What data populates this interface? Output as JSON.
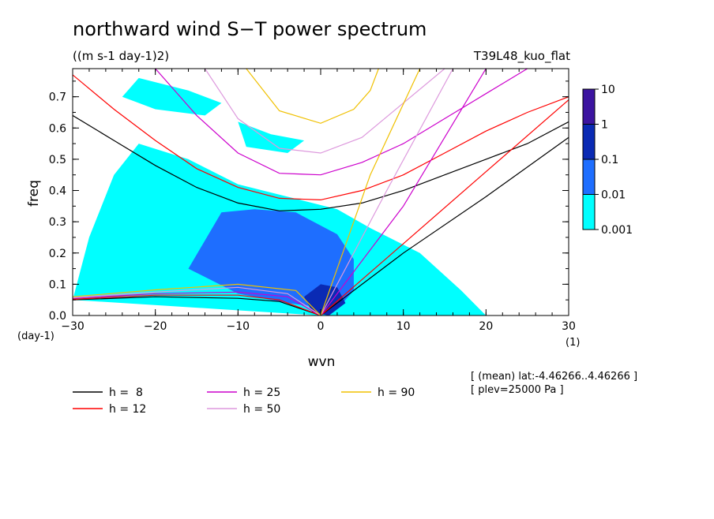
{
  "chart_data": {
    "type": "heatmap",
    "title": "northward wind S−T power spectrum",
    "subtitle": "((m s-1 day-1)2)",
    "run_label": "T39L48_kuo_flat",
    "xlabel": "wvn",
    "ylabel": "freq",
    "x_unit": "(1)",
    "y_unit": "(day-1)",
    "xlim": [
      -30,
      30
    ],
    "ylim": [
      0.0,
      0.79
    ],
    "x_ticks": [
      -30,
      -20,
      -10,
      0,
      10,
      20,
      30
    ],
    "x_tick_labels": [
      "−30",
      "−20",
      "−10",
      "0",
      "10",
      "20",
      "30"
    ],
    "y_ticks": [
      0.0,
      0.1,
      0.2,
      0.3,
      0.4,
      0.5,
      0.6,
      0.7
    ],
    "y_tick_labels": [
      "0.0",
      "0.1",
      "0.2",
      "0.3",
      "0.4",
      "0.5",
      "0.6",
      "0.7"
    ],
    "colorbar": {
      "levels": [
        0.001,
        0.01,
        0.1,
        1,
        10
      ],
      "labels": [
        "0.001",
        "0.01",
        "0.1",
        "1",
        "10"
      ],
      "colors": [
        "#00ffff",
        "#1e6eff",
        "#0a2ab4",
        "#3c14a0"
      ]
    },
    "contour_regions": [
      {
        "level": 0.001,
        "color": "#00ffff",
        "polygon": [
          [
            -30,
            0.05
          ],
          [
            -28,
            0.25
          ],
          [
            -25,
            0.45
          ],
          [
            -22,
            0.55
          ],
          [
            -16,
            0.5
          ],
          [
            -10,
            0.42
          ],
          [
            -4,
            0.38
          ],
          [
            2,
            0.34
          ],
          [
            6,
            0.28
          ],
          [
            12,
            0.2
          ],
          [
            17,
            0.08
          ],
          [
            20,
            0.0
          ],
          [
            0,
            0.0
          ],
          [
            -12,
            0.02
          ]
        ]
      },
      {
        "level": 0.001,
        "color": "#00ffff",
        "polygon": [
          [
            -22,
            0.76
          ],
          [
            -16,
            0.72
          ],
          [
            -12,
            0.68
          ],
          [
            -14,
            0.64
          ],
          [
            -20,
            0.66
          ],
          [
            -24,
            0.7
          ]
        ]
      },
      {
        "level": 0.001,
        "color": "#00ffff",
        "polygon": [
          [
            -10,
            0.62
          ],
          [
            -6,
            0.58
          ],
          [
            -2,
            0.56
          ],
          [
            -4,
            0.52
          ],
          [
            -9,
            0.54
          ]
        ]
      },
      {
        "level": 0.01,
        "color": "#1e6eff",
        "polygon": [
          [
            -16,
            0.15
          ],
          [
            -12,
            0.33
          ],
          [
            -8,
            0.34
          ],
          [
            -3,
            0.33
          ],
          [
            2,
            0.26
          ],
          [
            4,
            0.18
          ],
          [
            4,
            0.08
          ],
          [
            2,
            0.02
          ],
          [
            -4,
            0.04
          ],
          [
            -10,
            0.07
          ]
        ]
      },
      {
        "level": 0.1,
        "color": "#0a2ab4",
        "polygon": [
          [
            -2,
            0.06
          ],
          [
            0,
            0.1
          ],
          [
            2,
            0.09
          ],
          [
            3,
            0.04
          ],
          [
            1,
            0.0
          ],
          [
            -1,
            0.01
          ]
        ]
      }
    ],
    "dispersion_legend": [
      {
        "label": "h =  8",
        "color": "#000000"
      },
      {
        "label": "h = 12",
        "color": "#ff0000"
      },
      {
        "label": "h = 25",
        "color": "#cc00cc"
      },
      {
        "label": "h = 50",
        "color": "#dd99dd"
      },
      {
        "label": "h = 90",
        "color": "#f0c000"
      }
    ],
    "curves": [
      {
        "label": "h =  8",
        "color": "#000000",
        "points": [
          [
            -30,
            0.64
          ],
          [
            -25,
            0.56
          ],
          [
            -20,
            0.48
          ],
          [
            -15,
            0.41
          ],
          [
            -10,
            0.36
          ],
          [
            -5,
            0.335
          ],
          [
            0,
            0.34
          ],
          [
            5,
            0.36
          ],
          [
            10,
            0.4
          ],
          [
            15,
            0.45
          ],
          [
            20,
            0.5
          ],
          [
            25,
            0.55
          ],
          [
            30,
            0.62
          ]
        ]
      },
      {
        "label": "h = 12",
        "color": "#ff0000",
        "points": [
          [
            -30,
            0.77
          ],
          [
            -25,
            0.66
          ],
          [
            -20,
            0.56
          ],
          [
            -15,
            0.47
          ],
          [
            -10,
            0.41
          ],
          [
            -5,
            0.375
          ],
          [
            0,
            0.37
          ],
          [
            5,
            0.4
          ],
          [
            10,
            0.45
          ],
          [
            15,
            0.52
          ],
          [
            20,
            0.59
          ],
          [
            25,
            0.65
          ],
          [
            30,
            0.7
          ]
        ]
      },
      {
        "label": "h = 25",
        "color": "#cc00cc",
        "points": [
          [
            -20,
            0.79
          ],
          [
            -15,
            0.64
          ],
          [
            -10,
            0.52
          ],
          [
            -5,
            0.455
          ],
          [
            0,
            0.45
          ],
          [
            5,
            0.49
          ],
          [
            10,
            0.55
          ],
          [
            15,
            0.63
          ],
          [
            20,
            0.71
          ],
          [
            25,
            0.79
          ]
        ]
      },
      {
        "label": "h = 50",
        "color": "#dd99dd",
        "points": [
          [
            -14,
            0.79
          ],
          [
            -10,
            0.63
          ],
          [
            -5,
            0.535
          ],
          [
            0,
            0.52
          ],
          [
            5,
            0.57
          ],
          [
            10,
            0.68
          ],
          [
            15,
            0.79
          ]
        ]
      },
      {
        "label": "h = 90",
        "color": "#f0c000",
        "points": [
          [
            -9,
            0.79
          ],
          [
            -5,
            0.655
          ],
          [
            0,
            0.615
          ],
          [
            4,
            0.66
          ],
          [
            6,
            0.72
          ],
          [
            7,
            0.79
          ]
        ]
      },
      {
        "label": "h =  8",
        "color": "#000000",
        "points": [
          [
            0,
            0.0
          ],
          [
            10,
            0.2
          ],
          [
            20,
            0.38
          ],
          [
            30,
            0.57
          ]
        ]
      },
      {
        "label": "h = 12",
        "color": "#ff0000",
        "points": [
          [
            0,
            0.0
          ],
          [
            10,
            0.23
          ],
          [
            20,
            0.46
          ],
          [
            30,
            0.69
          ]
        ]
      },
      {
        "label": "h = 25",
        "color": "#cc00cc",
        "points": [
          [
            0,
            0.0
          ],
          [
            10,
            0.35
          ],
          [
            20,
            0.79
          ]
        ]
      },
      {
        "label": "h = 50",
        "color": "#dd99dd",
        "points": [
          [
            0,
            0.0
          ],
          [
            8,
            0.4
          ],
          [
            16,
            0.79
          ]
        ]
      },
      {
        "label": "h = 90",
        "color": "#f0c000",
        "points": [
          [
            0,
            0.0
          ],
          [
            6,
            0.45
          ],
          [
            12,
            0.79
          ]
        ]
      },
      {
        "label": "h =  8",
        "color": "#000000",
        "points": [
          [
            -30,
            0.05
          ],
          [
            -20,
            0.06
          ],
          [
            -10,
            0.055
          ],
          [
            -5,
            0.045
          ],
          [
            0,
            0.0
          ]
        ]
      },
      {
        "label": "h = 12",
        "color": "#ff0000",
        "points": [
          [
            -30,
            0.052
          ],
          [
            -20,
            0.065
          ],
          [
            -10,
            0.065
          ],
          [
            -5,
            0.05
          ],
          [
            0,
            0.0
          ]
        ]
      },
      {
        "label": "h = 25",
        "color": "#cc00cc",
        "points": [
          [
            -30,
            0.055
          ],
          [
            -20,
            0.07
          ],
          [
            -10,
            0.075
          ],
          [
            -4,
            0.06
          ],
          [
            0,
            0.0
          ]
        ]
      },
      {
        "label": "h = 50",
        "color": "#dd99dd",
        "points": [
          [
            -30,
            0.057
          ],
          [
            -20,
            0.075
          ],
          [
            -10,
            0.09
          ],
          [
            -4,
            0.07
          ],
          [
            0,
            0.0
          ]
        ]
      },
      {
        "label": "h = 90",
        "color": "#f0c000",
        "points": [
          [
            -30,
            0.06
          ],
          [
            -20,
            0.082
          ],
          [
            -10,
            0.1
          ],
          [
            -3,
            0.08
          ],
          [
            0,
            0.0
          ]
        ]
      }
    ]
  },
  "annotations": {
    "mean_line": "[ (mean) lat:-4.46266..4.46266 ]",
    "plev_line": "[ plev=25000 Pa ]"
  }
}
